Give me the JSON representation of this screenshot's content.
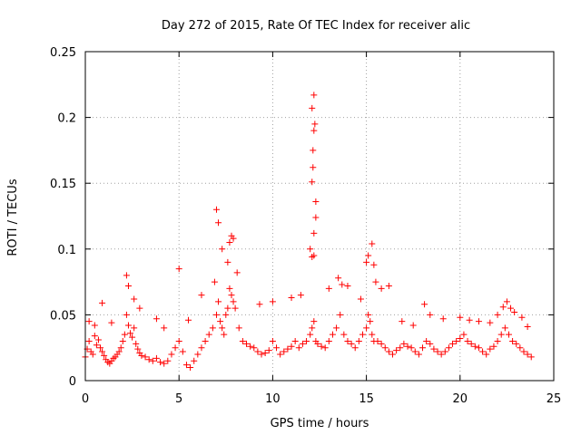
{
  "chart_data": {
    "type": "scatter",
    "title": "Day 272 of 2015, Rate Of TEC Index for receiver alic",
    "xlabel": "GPS time / hours",
    "ylabel": "ROTI / TECUs",
    "xlim": [
      0,
      25
    ],
    "ylim": [
      0,
      0.25
    ],
    "grid": true,
    "marker": "plus",
    "color": "#ff0000",
    "xticks": [
      0,
      5,
      10,
      15,
      20,
      25
    ],
    "xtick_labels": [
      "0",
      "5",
      "10",
      "15",
      "20",
      "25"
    ],
    "yticks": [
      0,
      0.05,
      0.1,
      0.15,
      0.2,
      0.25
    ],
    "ytick_labels": [
      "0",
      "0.05",
      "0.1",
      "0.15",
      "0.2",
      "0.25"
    ],
    "series": [
      {
        "name": "ROTI",
        "x": [
          0.0,
          0.1,
          0.2,
          0.3,
          0.4,
          0.5,
          0.6,
          0.7,
          0.8,
          0.9,
          1.0,
          1.1,
          1.2,
          1.3,
          1.4,
          1.5,
          1.6,
          1.7,
          1.8,
          1.9,
          2.0,
          2.1,
          2.2,
          2.3,
          2.4,
          2.5,
          2.6,
          2.7,
          2.8,
          2.9,
          3.0,
          3.2,
          3.4,
          3.6,
          3.8,
          4.0,
          4.2,
          4.4,
          4.6,
          4.8,
          5.0,
          5.2,
          5.4,
          5.6,
          5.8,
          6.0,
          6.2,
          6.4,
          6.6,
          6.8,
          7.0,
          7.1,
          7.2,
          7.3,
          7.4,
          7.5,
          7.6,
          7.7,
          7.8,
          7.9,
          8.0,
          8.2,
          8.4,
          8.6,
          8.8,
          9.0,
          9.2,
          9.4,
          9.6,
          9.8,
          10.0,
          10.2,
          10.4,
          10.6,
          10.8,
          11.0,
          11.2,
          11.4,
          11.6,
          11.8,
          12.0,
          12.1,
          12.2,
          12.3,
          12.4,
          12.6,
          12.8,
          13.0,
          13.2,
          13.4,
          13.6,
          13.8,
          14.0,
          14.2,
          14.4,
          14.6,
          14.8,
          15.0,
          15.1,
          15.2,
          15.3,
          15.4,
          15.6,
          15.8,
          16.0,
          16.2,
          16.4,
          16.6,
          16.8,
          17.0,
          17.2,
          17.4,
          17.6,
          17.8,
          18.0,
          18.2,
          18.4,
          18.6,
          18.8,
          19.0,
          19.2,
          19.4,
          19.6,
          19.8,
          20.0,
          20.2,
          20.4,
          20.6,
          20.8,
          21.0,
          21.2,
          21.4,
          21.6,
          21.8,
          22.0,
          22.2,
          22.4,
          22.6,
          22.8,
          23.0,
          23.2,
          23.4,
          23.6,
          23.8,
          0.2,
          0.5,
          0.9,
          1.4,
          2.2,
          2.3,
          2.6,
          2.9,
          3.8,
          4.2,
          5.0,
          5.5,
          6.2,
          6.9,
          7.0,
          7.1,
          7.3,
          7.6,
          7.7,
          7.8,
          7.9,
          8.1,
          9.3,
          10.0,
          11.0,
          11.5,
          12.0,
          12.1,
          12.15,
          12.2,
          12.25,
          12.3,
          12.1,
          12.2,
          12.15,
          12.3,
          12.2,
          12.1,
          12.2,
          13.0,
          13.5,
          13.7,
          14.0,
          14.7,
          15.0,
          15.1,
          15.3,
          15.4,
          15.5,
          15.8,
          16.2,
          16.9,
          17.5,
          18.1,
          18.4,
          19.1,
          20.0,
          20.5,
          21.0,
          21.6,
          22.0,
          22.3,
          22.5,
          22.7,
          22.9,
          23.3,
          23.6
        ],
        "y": [
          0.018,
          0.024,
          0.03,
          0.022,
          0.02,
          0.034,
          0.027,
          0.031,
          0.025,
          0.022,
          0.019,
          0.016,
          0.014,
          0.013,
          0.015,
          0.017,
          0.018,
          0.02,
          0.022,
          0.025,
          0.03,
          0.035,
          0.05,
          0.042,
          0.036,
          0.033,
          0.04,
          0.028,
          0.024,
          0.021,
          0.019,
          0.018,
          0.016,
          0.015,
          0.017,
          0.014,
          0.013,
          0.015,
          0.02,
          0.025,
          0.03,
          0.022,
          0.012,
          0.01,
          0.015,
          0.02,
          0.025,
          0.03,
          0.035,
          0.04,
          0.05,
          0.06,
          0.045,
          0.04,
          0.035,
          0.05,
          0.055,
          0.07,
          0.065,
          0.06,
          0.055,
          0.04,
          0.03,
          0.028,
          0.026,
          0.025,
          0.022,
          0.02,
          0.021,
          0.023,
          0.03,
          0.025,
          0.02,
          0.022,
          0.024,
          0.026,
          0.03,
          0.025,
          0.028,
          0.03,
          0.035,
          0.04,
          0.045,
          0.03,
          0.028,
          0.026,
          0.025,
          0.03,
          0.035,
          0.04,
          0.05,
          0.035,
          0.03,
          0.028,
          0.025,
          0.03,
          0.035,
          0.04,
          0.05,
          0.045,
          0.035,
          0.03,
          0.03,
          0.028,
          0.025,
          0.022,
          0.02,
          0.023,
          0.025,
          0.028,
          0.026,
          0.025,
          0.022,
          0.02,
          0.025,
          0.03,
          0.028,
          0.024,
          0.022,
          0.02,
          0.022,
          0.025,
          0.028,
          0.03,
          0.032,
          0.035,
          0.03,
          0.028,
          0.026,
          0.025,
          0.022,
          0.02,
          0.024,
          0.026,
          0.03,
          0.035,
          0.04,
          0.035,
          0.03,
          0.028,
          0.025,
          0.022,
          0.02,
          0.018,
          0.045,
          0.042,
          0.059,
          0.044,
          0.08,
          0.072,
          0.062,
          0.055,
          0.047,
          0.04,
          0.085,
          0.046,
          0.065,
          0.075,
          0.13,
          0.12,
          0.1,
          0.09,
          0.105,
          0.11,
          0.108,
          0.082,
          0.058,
          0.06,
          0.063,
          0.065,
          0.1,
          0.151,
          0.162,
          0.217,
          0.195,
          0.124,
          0.207,
          0.19,
          0.175,
          0.136,
          0.112,
          0.094,
          0.095,
          0.07,
          0.078,
          0.073,
          0.072,
          0.062,
          0.09,
          0.095,
          0.104,
          0.088,
          0.075,
          0.07,
          0.072,
          0.045,
          0.042,
          0.058,
          0.05,
          0.047,
          0.048,
          0.046,
          0.045,
          0.044,
          0.05,
          0.056,
          0.06,
          0.055,
          0.052,
          0.048,
          0.041
        ]
      }
    ]
  }
}
